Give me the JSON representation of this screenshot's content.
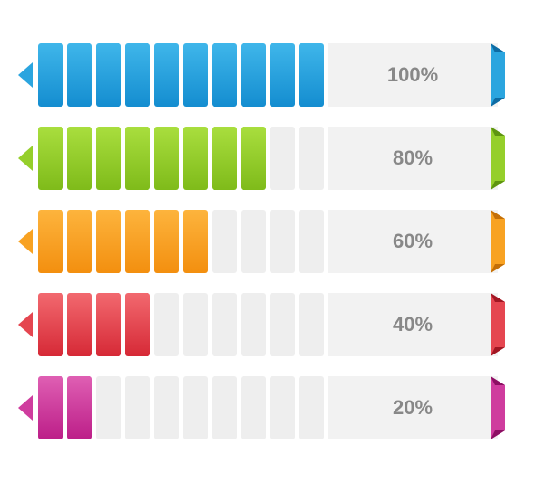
{
  "chart": {
    "type": "progress-bars",
    "segment_count": 10,
    "segment_width": 28,
    "segment_gap": 4,
    "segment_radius": 3,
    "empty_segment_color": "#eeeeee",
    "label_bg_color": "#f2f2f2",
    "label_text_color": "#888888",
    "label_fontsize": 22,
    "background_color": "#ffffff",
    "bars": [
      {
        "value": 100,
        "filled": 10,
        "label": "100%",
        "color_top": "#3fb6ea",
        "color_bottom": "#148dd0",
        "arrow_color": "#2ba5df",
        "fold_dark": "#0e6ba3"
      },
      {
        "value": 80,
        "filled": 8,
        "label": "80%",
        "color_top": "#a9de3e",
        "color_bottom": "#7fbb1a",
        "arrow_color": "#95cf2b",
        "fold_dark": "#5e9410"
      },
      {
        "value": 60,
        "filled": 6,
        "label": "60%",
        "color_top": "#fdb43d",
        "color_bottom": "#f38f0f",
        "arrow_color": "#f8a222",
        "fold_dark": "#c36f08"
      },
      {
        "value": 40,
        "filled": 4,
        "label": "40%",
        "color_top": "#f2696f",
        "color_bottom": "#d62936",
        "arrow_color": "#e54650",
        "fold_dark": "#a11723"
      },
      {
        "value": 20,
        "filled": 2,
        "label": "20%",
        "color_top": "#df5fb3",
        "color_bottom": "#bc1e88",
        "arrow_color": "#cf3c9e",
        "fold_dark": "#8c0f63"
      }
    ]
  }
}
